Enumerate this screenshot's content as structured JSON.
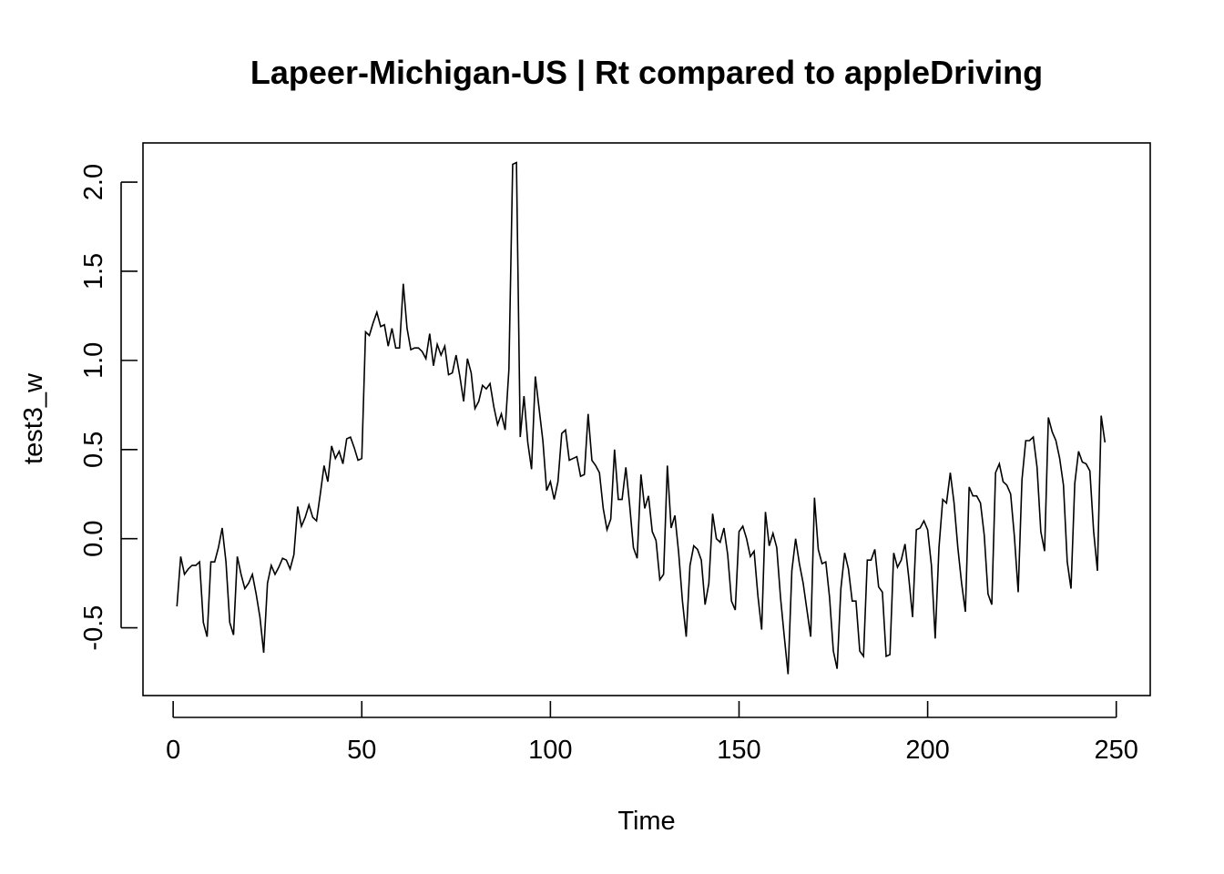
{
  "chart_data": {
    "type": "line",
    "title": "Lapeer-Michigan-US | Rt compared to appleDriving",
    "xlabel": "Time",
    "ylabel": "test3_w",
    "xlim": [
      -8,
      259
    ],
    "ylim": [
      -0.88,
      2.22
    ],
    "x_ticks": [
      0,
      50,
      100,
      150,
      200,
      250
    ],
    "y_ticks": [
      -0.5,
      0.0,
      0.5,
      1.0,
      1.5,
      2.0
    ],
    "x_tick_labels": [
      "0",
      "50",
      "100",
      "150",
      "200",
      "250"
    ],
    "y_tick_labels": [
      "-0.5",
      "0.0",
      "0.5",
      "1.0",
      "1.5",
      "2.0"
    ],
    "grid": false,
    "legend": "none",
    "series": [
      {
        "color": "#000000",
        "x_start": 1,
        "values": [
          -0.38,
          -0.1,
          -0.2,
          -0.17,
          -0.15,
          -0.15,
          -0.13,
          -0.47,
          -0.55,
          -0.13,
          -0.13,
          -0.05,
          0.06,
          -0.13,
          -0.47,
          -0.54,
          -0.1,
          -0.2,
          -0.28,
          -0.25,
          -0.2,
          -0.31,
          -0.44,
          -0.64,
          -0.25,
          -0.15,
          -0.2,
          -0.16,
          -0.11,
          -0.12,
          -0.17,
          -0.09,
          0.18,
          0.07,
          0.12,
          0.19,
          0.12,
          0.1,
          0.25,
          0.41,
          0.32,
          0.52,
          0.45,
          0.49,
          0.42,
          0.56,
          0.57,
          0.51,
          0.44,
          0.45,
          1.16,
          1.14,
          1.21,
          1.27,
          1.19,
          1.2,
          1.08,
          1.18,
          1.07,
          1.07,
          1.43,
          1.18,
          1.06,
          1.07,
          1.07,
          1.05,
          1.01,
          1.15,
          0.97,
          1.09,
          1.03,
          1.08,
          0.92,
          0.93,
          1.03,
          0.91,
          0.77,
          1.01,
          0.93,
          0.73,
          0.77,
          0.86,
          0.84,
          0.87,
          0.74,
          0.64,
          0.7,
          0.61,
          0.95,
          2.1,
          2.11,
          0.57,
          0.8,
          0.54,
          0.39,
          0.91,
          0.73,
          0.55,
          0.27,
          0.32,
          0.22,
          0.32,
          0.59,
          0.61,
          0.44,
          0.45,
          0.46,
          0.35,
          0.36,
          0.7,
          0.44,
          0.41,
          0.37,
          0.17,
          0.05,
          0.11,
          0.5,
          0.22,
          0.22,
          0.4,
          0.19,
          -0.05,
          -0.11,
          0.36,
          0.17,
          0.24,
          0.04,
          -0.01,
          -0.23,
          -0.2,
          0.41,
          0.06,
          0.13,
          -0.08,
          -0.35,
          -0.55,
          -0.15,
          -0.04,
          -0.06,
          -0.12,
          -0.37,
          -0.25,
          0.14,
          0.0,
          -0.02,
          0.06,
          -0.09,
          -0.35,
          -0.4,
          0.04,
          0.07,
          0.0,
          -0.1,
          -0.07,
          -0.32,
          -0.51,
          0.15,
          -0.04,
          0.03,
          -0.05,
          -0.33,
          -0.55,
          -0.76,
          -0.18,
          0.0,
          -0.14,
          -0.25,
          -0.4,
          -0.55,
          0.23,
          -0.06,
          -0.14,
          -0.13,
          -0.33,
          -0.63,
          -0.73,
          -0.28,
          -0.08,
          -0.17,
          -0.35,
          -0.35,
          -0.63,
          -0.66,
          -0.12,
          -0.12,
          -0.06,
          -0.27,
          -0.3,
          -0.66,
          -0.65,
          -0.08,
          -0.16,
          -0.12,
          -0.03,
          -0.22,
          -0.44,
          0.05,
          0.06,
          0.1,
          0.05,
          -0.15,
          -0.56,
          -0.05,
          0.22,
          0.2,
          0.37,
          0.2,
          -0.05,
          -0.25,
          -0.41,
          0.29,
          0.24,
          0.24,
          0.2,
          0.02,
          -0.31,
          -0.37,
          0.37,
          0.42,
          0.32,
          0.3,
          0.25,
          0.01,
          -0.3,
          0.33,
          0.55,
          0.55,
          0.57,
          0.4,
          0.04,
          -0.07,
          0.68,
          0.6,
          0.55,
          0.45,
          0.3,
          -0.13,
          -0.28,
          0.31,
          0.49,
          0.43,
          0.42,
          0.38,
          0.04,
          -0.18,
          0.69,
          0.54
        ]
      }
    ]
  }
}
